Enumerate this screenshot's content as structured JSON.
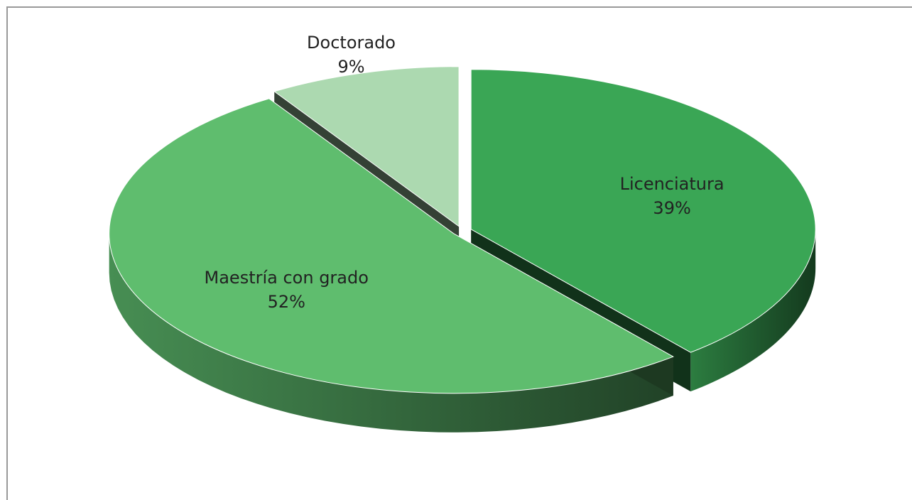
{
  "chart_data": {
    "type": "pie",
    "categories": [
      "Licenciatura",
      "Maestría con grado",
      "Doctorado"
    ],
    "values": [
      39,
      52,
      9
    ],
    "value_labels": [
      "39%",
      "52%",
      "9%"
    ],
    "colors": [
      "#3aa655",
      "#5fbd6e",
      "#acd9b0"
    ]
  }
}
